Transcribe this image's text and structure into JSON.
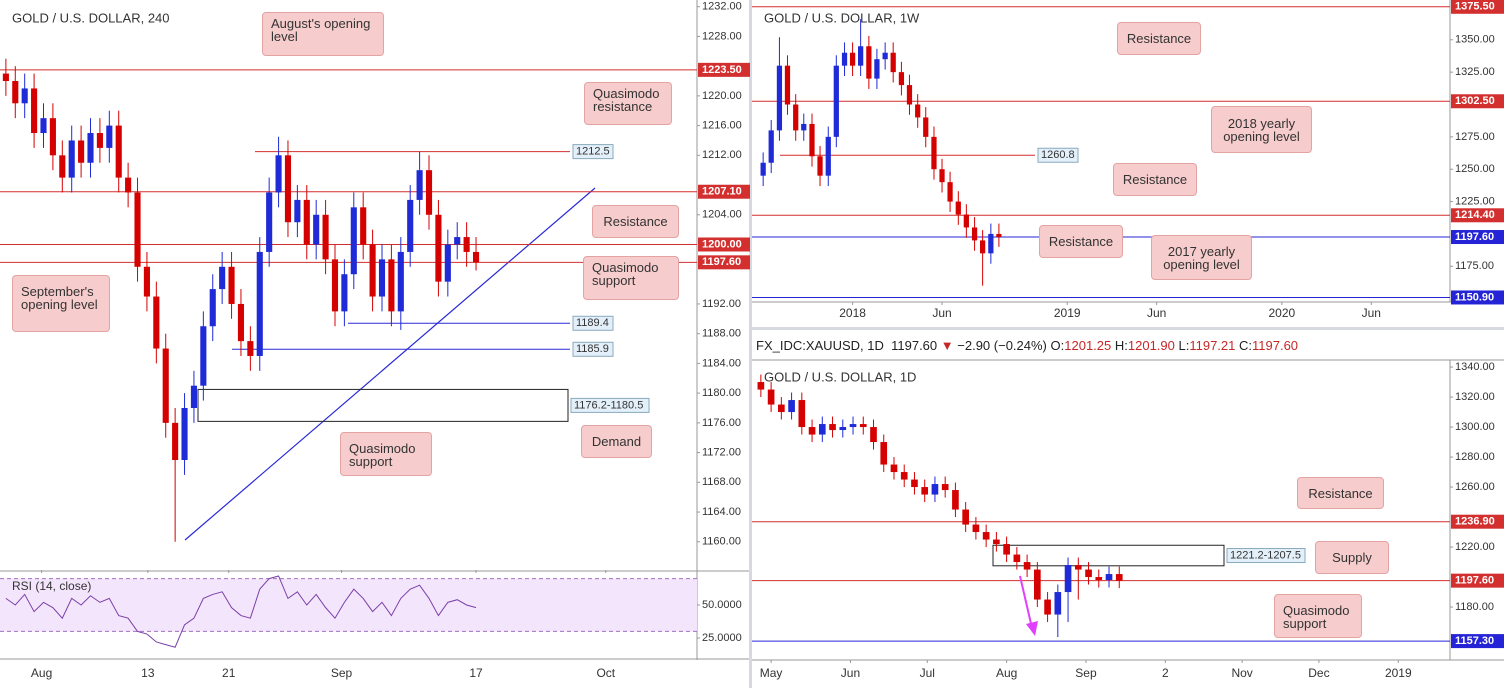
{
  "header": {
    "symbol": "FX_IDC:XAUUSD, 1D",
    "last": "1197.60",
    "arrow": "▼",
    "change": "−2.90 (−0.24%)",
    "o_label": "O:",
    "o": "1201.25",
    "h_label": "H:",
    "h": "1201.90",
    "l_label": "L:",
    "l": "1197.21",
    "c_label": "C:",
    "c": "1197.60"
  },
  "chart_data": [
    {
      "type": "candlestick",
      "title": "GOLD / U.S. DOLLAR, 240",
      "x": [
        0,
        1,
        2,
        3,
        4,
        5,
        6,
        7,
        8,
        9,
        10,
        11,
        12,
        13,
        14,
        15,
        16,
        17,
        18,
        19,
        20,
        21,
        22,
        23,
        24,
        25,
        26,
        27,
        28,
        29,
        30,
        31,
        32,
        33,
        34,
        35,
        36,
        37,
        38,
        39,
        40,
        41,
        42,
        43,
        44,
        45,
        46,
        47,
        48,
        49,
        50
      ],
      "open": [
        1223,
        1222,
        1219,
        1221,
        1215,
        1217,
        1212,
        1209,
        1214,
        1211,
        1215,
        1213,
        1216,
        1209,
        1207,
        1197,
        1193,
        1186,
        1176,
        1171,
        1178,
        1181,
        1189,
        1194,
        1197,
        1192,
        1187,
        1185,
        1199,
        1207,
        1212,
        1203,
        1206,
        1200,
        1204,
        1198,
        1191,
        1196,
        1205,
        1200,
        1193,
        1198,
        1191,
        1199,
        1206,
        1210,
        1204,
        1195,
        1200,
        1201,
        1199
      ],
      "high": [
        1225,
        1224,
        1223,
        1223,
        1219,
        1219,
        1214,
        1216,
        1216,
        1217,
        1217,
        1218,
        1218,
        1211,
        1209,
        1199,
        1195,
        1188,
        1178,
        1180,
        1183,
        1191,
        1196,
        1199,
        1199,
        1194,
        1189,
        1201,
        1209,
        1214.5,
        1214,
        1208,
        1208,
        1206,
        1206,
        1200,
        1198,
        1207,
        1207,
        1202,
        1200,
        1200,
        1201,
        1208,
        1212.5,
        1212,
        1206,
        1202,
        1203,
        1203,
        1201
      ],
      "low": [
        1220,
        1217,
        1217,
        1213,
        1213,
        1210,
        1207,
        1207,
        1209,
        1209,
        1211,
        1211,
        1207,
        1205,
        1195,
        1191,
        1184,
        1174,
        1160,
        1169,
        1176,
        1179,
        1187,
        1192,
        1190,
        1185,
        1183,
        1183,
        1197,
        1205,
        1201,
        1201,
        1198,
        1198,
        1196,
        1189,
        1189,
        1194,
        1198,
        1191,
        1191,
        1189,
        1188.5,
        1197,
        1204,
        1202,
        1193,
        1193,
        1198,
        1197,
        1196.5
      ],
      "close": [
        1222,
        1219,
        1221,
        1215,
        1217,
        1212,
        1209,
        1214,
        1211,
        1215,
        1213,
        1216,
        1209,
        1207,
        1197,
        1193,
        1186,
        1176,
        1171,
        1178,
        1181,
        1189,
        1194,
        1197,
        1192,
        1187,
        1185,
        1199,
        1207,
        1212,
        1203,
        1206,
        1200,
        1204,
        1198,
        1191,
        1196,
        1205,
        1200,
        1193,
        1198,
        1191,
        1199,
        1206,
        1210,
        1204,
        1195,
        1200,
        1201,
        1199,
        1197.6
      ],
      "up_color": "#1f2bd6",
      "down_color": "#d50000",
      "xlim": [
        -0.2,
        73.5
      ],
      "ylim": [
        1156.2,
        1232.9
      ],
      "xticks": [
        {
          "value": 3.8,
          "label": "Aug"
        },
        {
          "value": 15.1,
          "label": "13"
        },
        {
          "value": 23.7,
          "label": "21"
        },
        {
          "value": 35.7,
          "label": "Sep"
        },
        {
          "value": 50,
          "label": "17"
        },
        {
          "value": 63.8,
          "label": "Oct"
        }
      ],
      "yticks": [
        {
          "value": 1232,
          "label": "1232.00"
        },
        {
          "value": 1228,
          "label": "1228.00"
        },
        {
          "value": 1220,
          "label": "1220.00"
        },
        {
          "value": 1216,
          "label": "1216.00"
        },
        {
          "value": 1212,
          "label": "1212.00"
        },
        {
          "value": 1204,
          "label": "1204.00"
        },
        {
          "value": 1192,
          "label": "1192.00"
        },
        {
          "value": 1188,
          "label": "1188.00"
        },
        {
          "value": 1184,
          "label": "1184.00"
        },
        {
          "value": 1180,
          "label": "1180.00"
        },
        {
          "value": 1176,
          "label": "1176.00"
        },
        {
          "value": 1172,
          "label": "1172.00"
        },
        {
          "value": 1168,
          "label": "1168.00"
        },
        {
          "value": 1164,
          "label": "1164.00"
        },
        {
          "value": 1160,
          "label": "1160.00"
        }
      ],
      "levels": [
        {
          "value": 1223.5,
          "label": "1223.50",
          "color": "#d32f2f"
        },
        {
          "value": 1207.1,
          "label": "1207.10",
          "color": "#d32f2f"
        },
        {
          "value": 1200,
          "label": "1200.00",
          "color": "#d32f2f"
        },
        {
          "value": 1197.6,
          "label": "1197.60",
          "color": "#d32f2f"
        }
      ],
      "marked_levels": [
        {
          "value": 1212.5,
          "color": "#d32f2f"
        },
        {
          "value": 1189.4,
          "color": "#2a2ad8"
        },
        {
          "value": 1185.9,
          "color": "#2a2ad8"
        }
      ],
      "zones": [
        {
          "low": 1176.2,
          "high": 1180.5,
          "label": "1176.2-1180.5"
        }
      ],
      "notes": [
        "August's opening level",
        "Quasimodo resistance",
        "Resistance",
        "September's opening level",
        "Quasimodo support",
        "Demand",
        "Quasimodo support"
      ],
      "indicator": {
        "type": "line",
        "title": "RSI (14, close)",
        "color": "#7b3fa8",
        "band": [
          30,
          70
        ],
        "ylim": [
          10.6,
          75
        ],
        "yticks": [
          {
            "value": 50,
            "label": "50.0000"
          },
          {
            "value": 25,
            "label": "25.0000"
          }
        ],
        "values": [
          55,
          50,
          58,
          45,
          52,
          48,
          40,
          55,
          50,
          57,
          52,
          55,
          42,
          40,
          30,
          28,
          22,
          20,
          18,
          35,
          40,
          55,
          58,
          60,
          48,
          42,
          40,
          62,
          70,
          72,
          55,
          60,
          50,
          58,
          48,
          40,
          52,
          62,
          55,
          45,
          52,
          42,
          55,
          62,
          65,
          55,
          42,
          52,
          54,
          50,
          48
        ]
      }
    },
    {
      "type": "candlestick",
      "title": "GOLD / U.S. DOLLAR, 1W",
      "x": [
        -5,
        -4.55,
        -4.09,
        -3.64,
        -3.18,
        -2.73,
        -2.27,
        -1.82,
        -1.36,
        -0.91,
        -0.45,
        0,
        0.45,
        0.91,
        1.36,
        1.82,
        2.27,
        2.73,
        3.18,
        3.64,
        4.09,
        4.55,
        5,
        5.45,
        5.91,
        6.36,
        6.82,
        7.27,
        7.73,
        8.18
      ],
      "open": [
        1245,
        1255,
        1280,
        1330,
        1300,
        1280,
        1285,
        1260,
        1245,
        1275,
        1330,
        1340,
        1330,
        1345,
        1320,
        1335,
        1340,
        1325,
        1315,
        1300,
        1290,
        1275,
        1250,
        1240,
        1225,
        1215,
        1205,
        1195,
        1185,
        1200
      ],
      "high": [
        1263,
        1288,
        1352,
        1338,
        1308,
        1293,
        1293,
        1268,
        1283,
        1338,
        1348,
        1348,
        1366,
        1353,
        1343,
        1348,
        1348,
        1333,
        1323,
        1308,
        1298,
        1283,
        1258,
        1248,
        1233,
        1223,
        1213,
        1203,
        1208,
        1208
      ],
      "low": [
        1237,
        1247,
        1272,
        1292,
        1272,
        1272,
        1252,
        1237,
        1237,
        1267,
        1322,
        1322,
        1322,
        1312,
        1312,
        1327,
        1317,
        1307,
        1292,
        1282,
        1267,
        1242,
        1232,
        1217,
        1207,
        1197,
        1187,
        1160,
        1177,
        1190
      ],
      "close": [
        1255,
        1280,
        1330,
        1300,
        1280,
        1285,
        1260,
        1245,
        1275,
        1330,
        1340,
        1330,
        1345,
        1320,
        1335,
        1340,
        1325,
        1315,
        1300,
        1290,
        1275,
        1250,
        1240,
        1225,
        1215,
        1205,
        1195,
        1185,
        1200,
        1197.6
      ],
      "up_color": "#1f2bd6",
      "down_color": "#d50000",
      "xlim": [
        -5.4,
        33.4
      ],
      "ylim": [
        1147.4,
        1379.2
      ],
      "xticks": [
        {
          "value": 0,
          "label": "2018"
        },
        {
          "value": 5,
          "label": "Jun"
        },
        {
          "value": 12,
          "label": "2019"
        },
        {
          "value": 17,
          "label": "Jun"
        },
        {
          "value": 24,
          "label": "2020"
        },
        {
          "value": 29,
          "label": "Jun"
        }
      ],
      "yticks": [
        {
          "value": 1350,
          "label": "1350.00"
        },
        {
          "value": 1325,
          "label": "1325.00"
        },
        {
          "value": 1275,
          "label": "1275.00"
        },
        {
          "value": 1250,
          "label": "1250.00"
        },
        {
          "value": 1225,
          "label": "1225.00"
        },
        {
          "value": 1175,
          "label": "1175.00"
        }
      ],
      "levels": [
        {
          "value": 1375.5,
          "label": "1375.50",
          "color": "#d32f2f"
        },
        {
          "value": 1302.5,
          "label": "1302.50",
          "color": "#d32f2f"
        },
        {
          "value": 1214.4,
          "label": "1214.40",
          "color": "#d32f2f"
        },
        {
          "value": 1197.6,
          "label": "1197.60",
          "color": "#2424d6"
        },
        {
          "value": 1150.9,
          "label": "1150.90",
          "color": "#2424d6"
        }
      ],
      "marked_levels": [
        {
          "value": 1260.8,
          "color": "#d32f2f"
        }
      ],
      "zones": [],
      "notes": [
        "Resistance",
        "2018 yearly opening level",
        "Resistance",
        "Resistance",
        "2017 yearly opening level"
      ]
    },
    {
      "type": "candlestick",
      "title": "GOLD / U.S. DOLLAR, 1D",
      "x": [
        -4,
        0,
        4,
        8,
        12,
        16,
        20,
        24,
        28,
        32,
        36,
        40,
        44,
        48,
        52,
        56,
        60,
        64,
        68,
        72,
        76,
        80,
        84,
        88,
        92,
        96,
        100,
        104,
        108,
        112,
        116,
        120,
        124,
        128,
        132,
        136
      ],
      "open": [
        1330,
        1325,
        1315,
        1310,
        1318,
        1300,
        1295,
        1302,
        1298,
        1300,
        1302,
        1300,
        1290,
        1275,
        1270,
        1265,
        1260,
        1255,
        1262,
        1258,
        1245,
        1235,
        1230,
        1225,
        1222,
        1215,
        1210,
        1205,
        1185,
        1175,
        1190,
        1208,
        1205,
        1200,
        1198,
        1202
      ],
      "high": [
        1335,
        1330,
        1320,
        1323,
        1323,
        1305,
        1307,
        1307,
        1305,
        1307,
        1307,
        1305,
        1295,
        1280,
        1275,
        1270,
        1265,
        1267,
        1267,
        1263,
        1250,
        1240,
        1235,
        1230,
        1227,
        1220,
        1215,
        1210,
        1190,
        1195,
        1213,
        1213,
        1210,
        1205,
        1207,
        1207
      ],
      "low": [
        1320,
        1310,
        1305,
        1305,
        1295,
        1290,
        1290,
        1293,
        1293,
        1295,
        1295,
        1285,
        1270,
        1265,
        1260,
        1255,
        1250,
        1250,
        1253,
        1240,
        1230,
        1225,
        1220,
        1217,
        1210,
        1205,
        1200,
        1180,
        1170,
        1160,
        1170,
        1185,
        1195,
        1193,
        1193,
        1192.6
      ],
      "close": [
        1325,
        1315,
        1310,
        1318,
        1300,
        1295,
        1302,
        1298,
        1300,
        1302,
        1300,
        1290,
        1275,
        1270,
        1265,
        1260,
        1255,
        1262,
        1258,
        1245,
        1235,
        1230,
        1225,
        1222,
        1215,
        1210,
        1205,
        1185,
        1175,
        1190,
        1208,
        1205,
        1200,
        1198,
        1202,
        1197.6
      ],
      "up_color": "#1f2bd6",
      "down_color": "#d50000",
      "xlim": [
        -5.9,
        265.2
      ],
      "ylim": [
        1144.7,
        1344.7
      ],
      "xticks": [
        {
          "value": 0,
          "label": "May"
        },
        {
          "value": 31,
          "label": "Jun"
        },
        {
          "value": 61,
          "label": "Jul"
        },
        {
          "value": 92,
          "label": "Aug"
        },
        {
          "value": 123,
          "label": "Sep"
        },
        {
          "value": 154,
          "label": "2"
        },
        {
          "value": 184,
          "label": "Nov"
        },
        {
          "value": 214,
          "label": "Dec"
        },
        {
          "value": 245,
          "label": "2019"
        }
      ],
      "yticks": [
        {
          "value": 1340,
          "label": "1340.00"
        },
        {
          "value": 1320,
          "label": "1320.00"
        },
        {
          "value": 1300,
          "label": "1300.00"
        },
        {
          "value": 1280,
          "label": "1280.00"
        },
        {
          "value": 1260,
          "label": "1260.00"
        },
        {
          "value": 1220,
          "label": "1220.00"
        },
        {
          "value": 1180,
          "label": "1180.00"
        }
      ],
      "levels": [
        {
          "value": 1236.9,
          "label": "1236.90",
          "color": "#d32f2f"
        },
        {
          "value": 1197.6,
          "label": "1197.60",
          "color": "#d32f2f"
        },
        {
          "value": 1157.3,
          "label": "1157.30",
          "color": "#2424d6"
        }
      ],
      "marked_levels": [],
      "zones": [
        {
          "low": 1207.5,
          "high": 1221.2,
          "label": "1221.2-1207.5"
        }
      ],
      "notes": [
        "Resistance",
        "Supply",
        "Quasimodo support"
      ]
    }
  ]
}
